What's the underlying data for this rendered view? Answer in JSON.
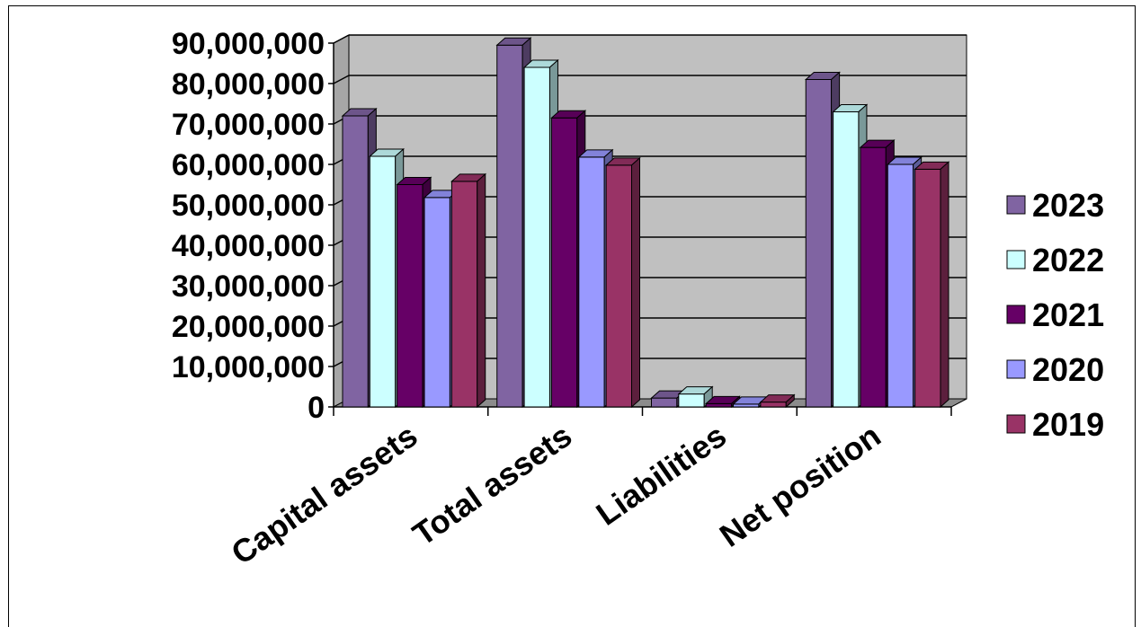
{
  "chart_data": {
    "type": "bar",
    "variant": "3d-clustered-column",
    "categories": [
      "Capital assets",
      "Total assets",
      "Liabilities",
      "Net position"
    ],
    "series": [
      {
        "name": "2023",
        "values": [
          72000000,
          89500000,
          2200000,
          81000000
        ],
        "color": "#8064A2"
      },
      {
        "name": "2022",
        "values": [
          62000000,
          84000000,
          3200000,
          73000000
        ],
        "color": "#CCFFFF"
      },
      {
        "name": "2021",
        "values": [
          55000000,
          71500000,
          800000,
          64200000
        ],
        "color": "#660066"
      },
      {
        "name": "2020",
        "values": [
          51800000,
          61800000,
          700000,
          60000000
        ],
        "color": "#9999FF"
      },
      {
        "name": "2019",
        "values": [
          55800000,
          59800000,
          1200000,
          58800000
        ],
        "color": "#993366"
      }
    ],
    "ylim": [
      0,
      90000000
    ],
    "yticks": [
      "0",
      "10,000,000",
      "20,000,000",
      "30,000,000",
      "40,000,000",
      "50,000,000",
      "60,000,000",
      "70,000,000",
      "80,000,000",
      "90,000,000"
    ],
    "grid": true,
    "wall_color": "#C0C0C0",
    "legend_position": "right",
    "title": "",
    "xlabel": "",
    "ylabel": ""
  }
}
